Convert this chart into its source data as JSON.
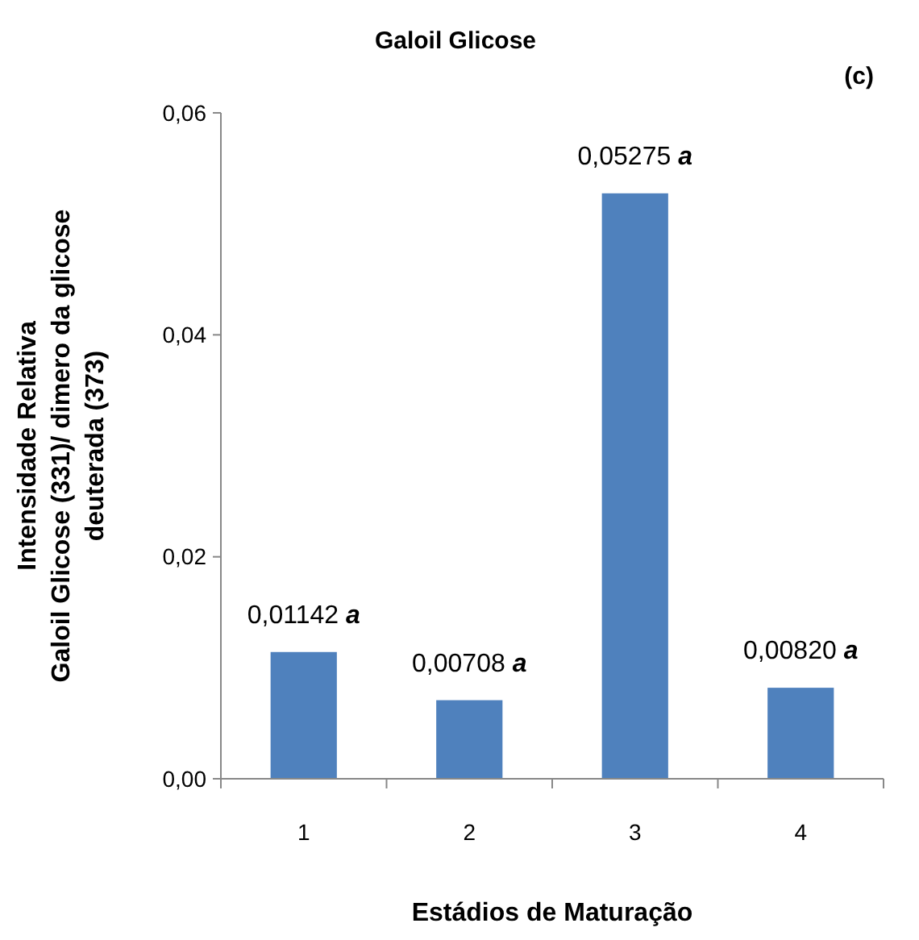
{
  "chart_data": {
    "type": "bar",
    "title": "Galoil Glicose",
    "xlabel": "Estádios de Maturação",
    "ylabel": "Intensidade Relativa\nGaloil Glicose (331)/ dimero da glicose\ndeuterada (373)",
    "annotations": [
      "(c)"
    ],
    "categories": [
      "1",
      "2",
      "3",
      "4"
    ],
    "values": [
      0.01142,
      0.00708,
      0.05275,
      0.0082
    ],
    "value_labels": [
      "0,01142 a",
      "0,00708 a",
      "0,05275 a",
      "0,00820 a"
    ],
    "color": "#4f81bd",
    "ylim": [
      0,
      0.06
    ],
    "yticks": [
      {
        "value": 0,
        "label": "0,00"
      },
      {
        "value": 0.02,
        "label": "0,02"
      },
      {
        "value": 0.04,
        "label": "0,04"
      },
      {
        "value": 0.06,
        "label": "0,06"
      }
    ],
    "grid": false
  }
}
